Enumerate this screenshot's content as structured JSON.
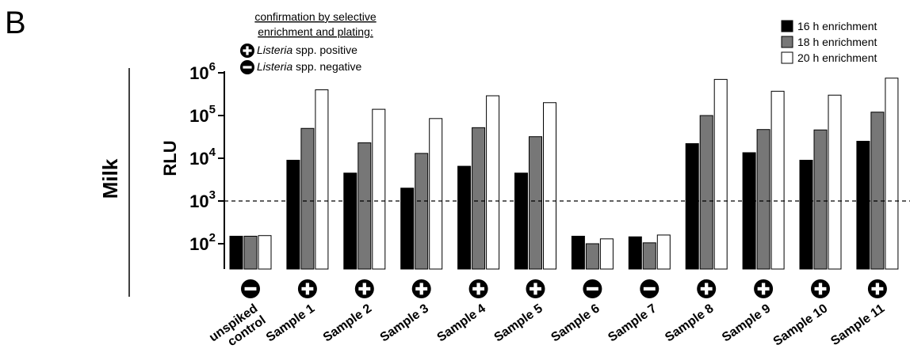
{
  "panel_letter": "B",
  "row_label": "Milk",
  "confirmation": {
    "title_line1": "confirmation by selective",
    "title_line2": "enrichment and plating:",
    "positive_italic": "Listeria",
    "positive_rest": " spp. positive",
    "negative_italic": "Listeria",
    "negative_rest": " spp. negative"
  },
  "chart_data": {
    "type": "bar",
    "ylabel": "RLU",
    "yscale": "log",
    "ylim": [
      25,
      1000000
    ],
    "y_ticks": [
      {
        "value": 100,
        "base": "10",
        "exp": "2"
      },
      {
        "value": 1000,
        "base": "10",
        "exp": "3"
      },
      {
        "value": 10000,
        "base": "10",
        "exp": "4"
      },
      {
        "value": 100000,
        "base": "10",
        "exp": "5"
      },
      {
        "value": 1000000,
        "base": "10",
        "exp": "6"
      }
    ],
    "threshold": 1000,
    "grid": false,
    "legend_position": "top-right",
    "categories": [
      [
        "unspiked",
        "control"
      ],
      [
        "Sample 1"
      ],
      [
        "Sample 2"
      ],
      [
        "Sample 3"
      ],
      [
        "Sample 4"
      ],
      [
        "Sample 5"
      ],
      [
        "Sample 6"
      ],
      [
        "Sample 7"
      ],
      [
        "Sample 8"
      ],
      [
        "Sample 9"
      ],
      [
        "Sample 10"
      ],
      [
        "Sample 11"
      ]
    ],
    "confirmation": [
      "negative",
      "positive",
      "positive",
      "positive",
      "positive",
      "positive",
      "negative",
      "negative",
      "positive",
      "positive",
      "positive",
      "positive"
    ],
    "series": [
      {
        "name": "16 h enrichment",
        "color": "#000000",
        "values": [
          150,
          9000,
          4500,
          2000,
          6500,
          4500,
          150,
          145,
          22000,
          13500,
          9000,
          25000
        ]
      },
      {
        "name": "18 h enrichment",
        "color": "#777777",
        "values": [
          150,
          50000,
          23000,
          13000,
          52000,
          32000,
          100,
          105,
          100000,
          47000,
          46000,
          120000
        ]
      },
      {
        "name": "20 h enrichment",
        "color": "#ffffff",
        "values": [
          155,
          400000,
          140000,
          85000,
          290000,
          200000,
          130,
          160,
          700000,
          370000,
          300000,
          750000
        ]
      }
    ]
  }
}
